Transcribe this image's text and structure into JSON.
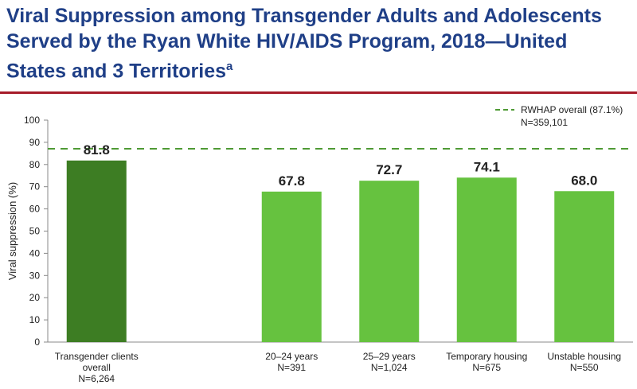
{
  "title": {
    "main": "Viral Suppression among Transgender Adults and Adolescents Served by the Ryan White HIV/AIDS Program, 2018—United States and 3 Territories",
    "superscript": "a"
  },
  "colors": {
    "title": "#1f3f87",
    "rule": "#a61b29",
    "bar_overall": "#3d7d23",
    "bar_group": "#66c23f",
    "reference_line": "#4f9a35"
  },
  "chart_data": {
    "type": "bar",
    "ylabel": "Viral suppression (%)",
    "xlabel": "",
    "ylim": [
      0,
      100
    ],
    "yticks": [
      0,
      10,
      20,
      30,
      40,
      50,
      60,
      70,
      80,
      90,
      100
    ],
    "grid": false,
    "categories": [
      {
        "label": [
          "Transgender clients",
          "overall",
          "N=6,264"
        ],
        "value": 81.8,
        "value_label": "81.8",
        "slot": 0,
        "style": "overall"
      },
      {
        "label": [
          "20–24 years",
          "N=391"
        ],
        "value": 67.8,
        "value_label": "67.8",
        "slot": 2,
        "style": "group"
      },
      {
        "label": [
          "25–29 years",
          "N=1,024"
        ],
        "value": 72.7,
        "value_label": "72.7",
        "slot": 3,
        "style": "group"
      },
      {
        "label": [
          "Temporary housing",
          "N=675"
        ],
        "value": 74.1,
        "value_label": "74.1",
        "slot": 4,
        "style": "group"
      },
      {
        "label": [
          "Unstable housing",
          "N=550"
        ],
        "value": 68.0,
        "value_label": "68.0",
        "slot": 5,
        "style": "group"
      }
    ],
    "reference_line": {
      "value": 87.1,
      "label": [
        "RWHAP overall (87.1%)",
        "N=359,101"
      ],
      "style": "dashed"
    },
    "legend": "top-right"
  }
}
